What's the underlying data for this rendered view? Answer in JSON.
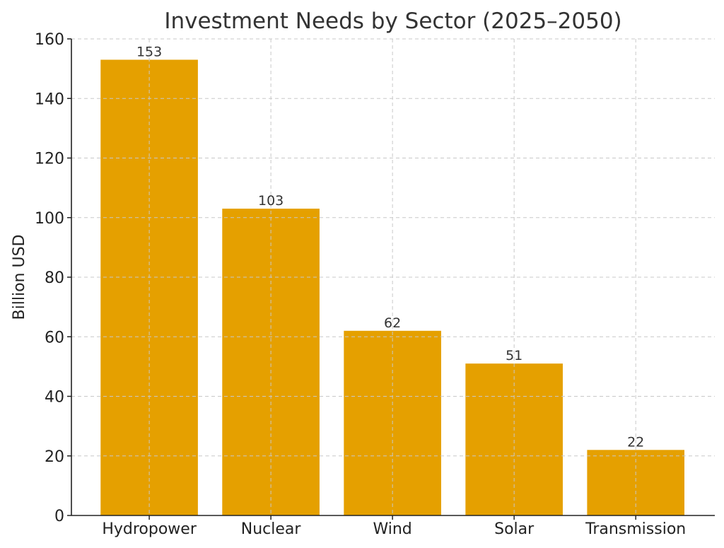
{
  "chart_data": {
    "type": "bar",
    "title": "Investment Needs by Sector (2025–2050)",
    "xlabel": "",
    "ylabel": "Billion USD",
    "categories": [
      "Hydropower",
      "Nuclear",
      "Wind",
      "Solar",
      "Transmission"
    ],
    "values": [
      153,
      103,
      62,
      51,
      22
    ],
    "data_labels": [
      "153",
      "103",
      "62",
      "51",
      "22"
    ],
    "ylim": [
      0,
      160
    ],
    "yticks": [
      0,
      20,
      40,
      60,
      80,
      100,
      120,
      140,
      160
    ],
    "grid": true,
    "bar_color": "#E5A000"
  }
}
